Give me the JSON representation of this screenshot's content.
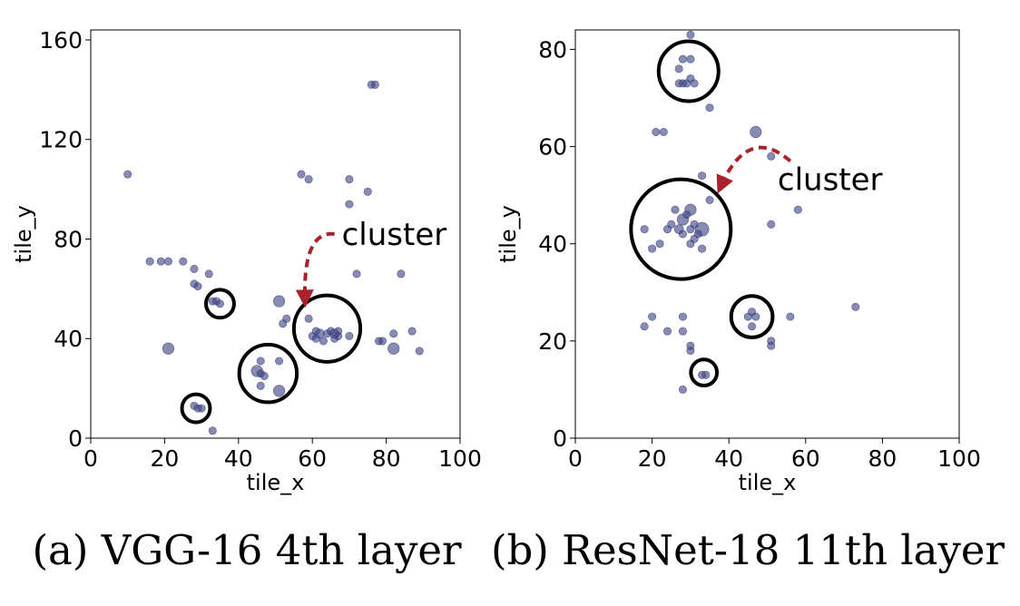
{
  "chart_data": [
    {
      "type": "scatter",
      "caption": "(a) VGG-16 4th layer",
      "xlabel": "tile_x",
      "ylabel": "tile_y",
      "xlim": [
        0,
        100
      ],
      "ylim": [
        0,
        164
      ],
      "xticks": [
        0,
        20,
        40,
        60,
        80,
        100
      ],
      "yticks": [
        0,
        40,
        80,
        120,
        160
      ],
      "annotation": {
        "text": "cluster",
        "from": [
          66,
          82
        ],
        "to": [
          58,
          56
        ],
        "color": "#a8232b"
      },
      "marker_color": "#3b3f7e",
      "points": [
        {
          "x": 10,
          "y": 106,
          "s": 1
        },
        {
          "x": 16,
          "y": 71,
          "s": 1
        },
        {
          "x": 19,
          "y": 71,
          "s": 1
        },
        {
          "x": 21,
          "y": 71,
          "s": 1
        },
        {
          "x": 25,
          "y": 71,
          "s": 1
        },
        {
          "x": 21,
          "y": 36,
          "s": 1.5
        },
        {
          "x": 28,
          "y": 68,
          "s": 1
        },
        {
          "x": 28,
          "y": 62,
          "s": 1
        },
        {
          "x": 29,
          "y": 61,
          "s": 1
        },
        {
          "x": 32,
          "y": 66,
          "s": 1
        },
        {
          "x": 33,
          "y": 55,
          "s": 1
        },
        {
          "x": 34,
          "y": 55,
          "s": 1
        },
        {
          "x": 35,
          "y": 54,
          "s": 1
        },
        {
          "x": 28,
          "y": 13,
          "s": 1
        },
        {
          "x": 29,
          "y": 12,
          "s": 1
        },
        {
          "x": 30,
          "y": 12,
          "s": 1
        },
        {
          "x": 33,
          "y": 3,
          "s": 1
        },
        {
          "x": 45,
          "y": 27,
          "s": 1.5
        },
        {
          "x": 46,
          "y": 26,
          "s": 1
        },
        {
          "x": 46,
          "y": 31,
          "s": 1
        },
        {
          "x": 47,
          "y": 25,
          "s": 1
        },
        {
          "x": 46,
          "y": 21,
          "s": 1
        },
        {
          "x": 51,
          "y": 31,
          "s": 1
        },
        {
          "x": 51,
          "y": 19,
          "s": 1.5
        },
        {
          "x": 51,
          "y": 55,
          "s": 1.5
        },
        {
          "x": 52,
          "y": 46,
          "s": 1
        },
        {
          "x": 53,
          "y": 48,
          "s": 1
        },
        {
          "x": 57,
          "y": 106,
          "s": 1
        },
        {
          "x": 59,
          "y": 104,
          "s": 1
        },
        {
          "x": 59,
          "y": 48,
          "s": 1
        },
        {
          "x": 60,
          "y": 41,
          "s": 1
        },
        {
          "x": 61,
          "y": 40,
          "s": 1
        },
        {
          "x": 61,
          "y": 43,
          "s": 1
        },
        {
          "x": 62,
          "y": 42,
          "s": 1.2
        },
        {
          "x": 63,
          "y": 39,
          "s": 1
        },
        {
          "x": 64,
          "y": 42,
          "s": 1
        },
        {
          "x": 65,
          "y": 43,
          "s": 1
        },
        {
          "x": 66,
          "y": 40,
          "s": 1
        },
        {
          "x": 66,
          "y": 42,
          "s": 1.2
        },
        {
          "x": 67,
          "y": 41,
          "s": 1
        },
        {
          "x": 67,
          "y": 43,
          "s": 1
        },
        {
          "x": 70,
          "y": 104,
          "s": 1
        },
        {
          "x": 70,
          "y": 94,
          "s": 1
        },
        {
          "x": 70,
          "y": 41,
          "s": 1
        },
        {
          "x": 72,
          "y": 66,
          "s": 1
        },
        {
          "x": 75,
          "y": 99,
          "s": 1
        },
        {
          "x": 76,
          "y": 142,
          "s": 1
        },
        {
          "x": 77,
          "y": 142,
          "s": 1
        },
        {
          "x": 78,
          "y": 39,
          "s": 1
        },
        {
          "x": 79,
          "y": 39,
          "s": 1
        },
        {
          "x": 82,
          "y": 36,
          "s": 1.5
        },
        {
          "x": 82,
          "y": 42,
          "s": 1
        },
        {
          "x": 84,
          "y": 66,
          "s": 1
        },
        {
          "x": 87,
          "y": 43,
          "s": 1
        },
        {
          "x": 89,
          "y": 35,
          "s": 1
        }
      ],
      "circles": [
        {
          "x": 35,
          "y": 54,
          "r": 3.8
        },
        {
          "x": 28.5,
          "y": 12,
          "r": 3.8
        },
        {
          "x": 48,
          "y": 26,
          "r": 7.8
        },
        {
          "x": 64,
          "y": 44,
          "r": 9
        }
      ]
    },
    {
      "type": "scatter",
      "caption": "(b) ResNet-18 11th layer",
      "xlabel": "tile_x",
      "ylabel": "tile_y",
      "xlim": [
        0,
        100
      ],
      "ylim": [
        0,
        84
      ],
      "xticks": [
        0,
        20,
        40,
        60,
        80,
        100
      ],
      "yticks": [
        0,
        20,
        40,
        60,
        80
      ],
      "annotation": {
        "text": "cluster",
        "from": [
          56,
          57
        ],
        "to": [
          38,
          52
        ],
        "color": "#a8232b"
      },
      "marker_color": "#3b3f7e",
      "points": [
        {
          "x": 30,
          "y": 83,
          "s": 1
        },
        {
          "x": 28,
          "y": 78,
          "s": 1
        },
        {
          "x": 30,
          "y": 78,
          "s": 1
        },
        {
          "x": 27,
          "y": 76,
          "s": 1
        },
        {
          "x": 30,
          "y": 74,
          "s": 1
        },
        {
          "x": 27,
          "y": 73,
          "s": 1
        },
        {
          "x": 28,
          "y": 73,
          "s": 1
        },
        {
          "x": 29,
          "y": 73,
          "s": 1
        },
        {
          "x": 31,
          "y": 73,
          "s": 1
        },
        {
          "x": 35,
          "y": 68,
          "s": 1
        },
        {
          "x": 21,
          "y": 63,
          "s": 1
        },
        {
          "x": 23,
          "y": 63,
          "s": 1
        },
        {
          "x": 33,
          "y": 54,
          "s": 1
        },
        {
          "x": 35,
          "y": 49,
          "s": 1
        },
        {
          "x": 47,
          "y": 63,
          "s": 1.5
        },
        {
          "x": 51,
          "y": 58,
          "s": 1
        },
        {
          "x": 51,
          "y": 44,
          "s": 1
        },
        {
          "x": 58,
          "y": 47,
          "s": 1
        },
        {
          "x": 18,
          "y": 43,
          "s": 1
        },
        {
          "x": 20,
          "y": 39,
          "s": 1
        },
        {
          "x": 22,
          "y": 40,
          "s": 1
        },
        {
          "x": 24,
          "y": 43,
          "s": 1
        },
        {
          "x": 25,
          "y": 44,
          "s": 1
        },
        {
          "x": 26,
          "y": 47,
          "s": 1
        },
        {
          "x": 27,
          "y": 43,
          "s": 1.2
        },
        {
          "x": 28,
          "y": 45,
          "s": 1.5
        },
        {
          "x": 28,
          "y": 42,
          "s": 1
        },
        {
          "x": 29,
          "y": 46,
          "s": 1
        },
        {
          "x": 30,
          "y": 47,
          "s": 1.5
        },
        {
          "x": 30,
          "y": 43,
          "s": 1
        },
        {
          "x": 31,
          "y": 44,
          "s": 1
        },
        {
          "x": 32,
          "y": 42,
          "s": 1
        },
        {
          "x": 33,
          "y": 43,
          "s": 1.8
        },
        {
          "x": 30,
          "y": 40,
          "s": 1
        },
        {
          "x": 31,
          "y": 41,
          "s": 1
        },
        {
          "x": 33,
          "y": 39,
          "s": 1
        },
        {
          "x": 18,
          "y": 23,
          "s": 1
        },
        {
          "x": 20,
          "y": 25,
          "s": 1
        },
        {
          "x": 24,
          "y": 22,
          "s": 1
        },
        {
          "x": 28,
          "y": 25,
          "s": 1
        },
        {
          "x": 28,
          "y": 22,
          "s": 1
        },
        {
          "x": 30,
          "y": 19,
          "s": 1
        },
        {
          "x": 30,
          "y": 18,
          "s": 1
        },
        {
          "x": 28,
          "y": 10,
          "s": 1
        },
        {
          "x": 33,
          "y": 13,
          "s": 1
        },
        {
          "x": 34,
          "y": 13,
          "s": 1
        },
        {
          "x": 45,
          "y": 25,
          "s": 1
        },
        {
          "x": 46,
          "y": 26,
          "s": 1
        },
        {
          "x": 47,
          "y": 25,
          "s": 1
        },
        {
          "x": 46,
          "y": 23,
          "s": 1
        },
        {
          "x": 51,
          "y": 20,
          "s": 1
        },
        {
          "x": 51,
          "y": 19,
          "s": 1
        },
        {
          "x": 56,
          "y": 25,
          "s": 1
        },
        {
          "x": 73,
          "y": 27,
          "s": 1
        }
      ],
      "circles": [
        {
          "x": 29.5,
          "y": 75.5,
          "r": 7.8
        },
        {
          "x": 27.5,
          "y": 43,
          "r": 13
        },
        {
          "x": 46,
          "y": 25,
          "r": 5.4
        },
        {
          "x": 33.5,
          "y": 13.5,
          "r": 3.4
        }
      ]
    }
  ]
}
